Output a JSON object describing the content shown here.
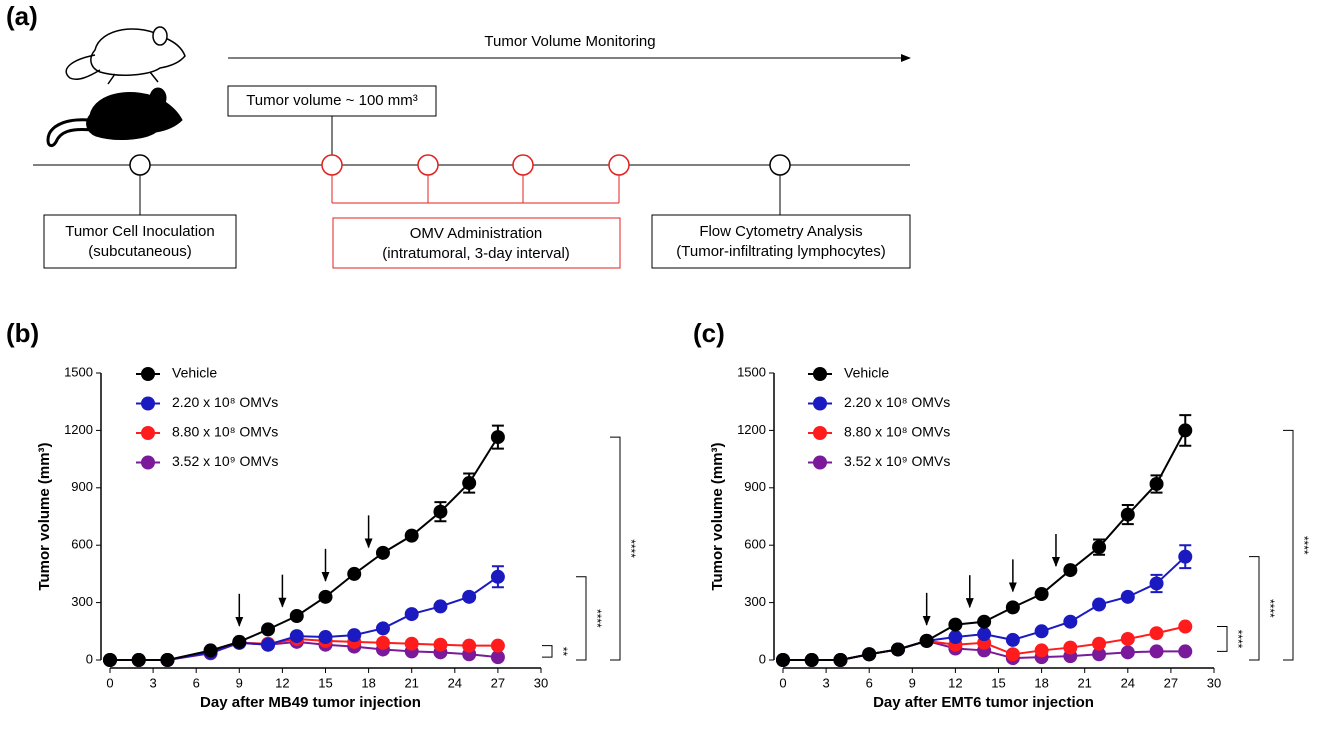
{
  "diagram": {
    "panel_label": "(a)",
    "monitoring": "Tumor Volume Monitoring",
    "threshold_box": "Tumor volume ~ 100 mm³",
    "boxes": [
      {
        "lines": [
          "Tumor Cell Inoculation",
          "(subcutaneous)"
        ]
      },
      {
        "lines": [
          "OMV Administration",
          "(intratumoral, 3-day interval)"
        ]
      },
      {
        "lines": [
          "Flow Cytometry Analysis",
          "(Tumor-infiltrating lymphocytes)"
        ]
      }
    ]
  },
  "chart_data": [
    {
      "type": "line",
      "panel_label": "(b)",
      "xlabel": "Day after MB49 tumor injection",
      "ylabel": "Tumor volume (mm³)",
      "x": [
        0,
        2,
        4,
        7,
        9,
        11,
        13,
        15,
        17,
        19,
        21,
        23,
        25,
        27
      ],
      "xlim": [
        0,
        30
      ],
      "xticks": [
        0,
        3,
        6,
        9,
        12,
        15,
        18,
        21,
        24,
        27,
        30
      ],
      "ylim": [
        0,
        1500
      ],
      "yticks": [
        0,
        300,
        600,
        900,
        1200,
        1500
      ],
      "series": [
        {
          "name": "Vehicle",
          "color": "#000000",
          "values": [
            0,
            0,
            0,
            50,
            95,
            160,
            230,
            330,
            450,
            560,
            650,
            775,
            925,
            1165
          ],
          "errors": [
            null,
            null,
            null,
            null,
            null,
            null,
            null,
            null,
            null,
            null,
            null,
            50,
            50,
            60
          ]
        },
        {
          "name": "2.20 x 10⁸ OMVs",
          "color": "#1a1ac0",
          "values": [
            0,
            0,
            0,
            40,
            90,
            80,
            125,
            120,
            130,
            165,
            240,
            280,
            330,
            435
          ],
          "errors": [
            null,
            null,
            null,
            null,
            null,
            null,
            null,
            null,
            null,
            null,
            null,
            null,
            null,
            55
          ]
        },
        {
          "name": "8.80 x 10⁸ OMVs",
          "color": "#ff1c1c",
          "values": [
            0,
            0,
            0,
            40,
            90,
            85,
            110,
            100,
            95,
            90,
            85,
            80,
            75,
            75
          ]
        },
        {
          "name": "3.52 x 10⁹ OMVs",
          "color": "#7a1a9a",
          "values": [
            0,
            0,
            0,
            35,
            90,
            80,
            95,
            80,
            70,
            55,
            45,
            40,
            30,
            15
          ]
        }
      ],
      "arrows": [
        9,
        12,
        15,
        18
      ],
      "brackets": [
        {
          "from": 15,
          "to": 75,
          "label": "**"
        },
        {
          "from": 0,
          "to": 435,
          "label": "****"
        },
        {
          "from": 0,
          "to": 1165,
          "label": "****"
        }
      ]
    },
    {
      "type": "line",
      "panel_label": "(c)",
      "xlabel": "Day after EMT6 tumor injection",
      "ylabel": "Tumor volume (mm³)",
      "x": [
        0,
        2,
        4,
        6,
        8,
        10,
        12,
        14,
        16,
        18,
        20,
        22,
        24,
        26,
        28
      ],
      "xlim": [
        0,
        30
      ],
      "xticks": [
        0,
        3,
        6,
        9,
        12,
        15,
        18,
        21,
        24,
        27,
        30
      ],
      "ylim": [
        0,
        1500
      ],
      "yticks": [
        0,
        300,
        600,
        900,
        1200,
        1500
      ],
      "series": [
        {
          "name": "Vehicle",
          "color": "#000000",
          "values": [
            0,
            0,
            0,
            30,
            55,
            100,
            185,
            200,
            275,
            345,
            470,
            590,
            760,
            920,
            1200
          ],
          "errors": [
            null,
            null,
            null,
            null,
            null,
            null,
            null,
            null,
            null,
            null,
            null,
            40,
            50,
            45,
            80
          ]
        },
        {
          "name": "2.20 x 10⁸ OMVs",
          "color": "#1a1ac0",
          "values": [
            0,
            0,
            0,
            30,
            55,
            100,
            120,
            135,
            105,
            150,
            200,
            290,
            330,
            400,
            540
          ],
          "errors": [
            null,
            null,
            null,
            null,
            null,
            null,
            null,
            null,
            null,
            null,
            null,
            null,
            null,
            45,
            60
          ]
        },
        {
          "name": "8.80 x 10⁸ OMVs",
          "color": "#ff1c1c",
          "values": [
            0,
            0,
            0,
            30,
            55,
            100,
            80,
            90,
            30,
            50,
            65,
            85,
            110,
            140,
            175
          ]
        },
        {
          "name": "3.52 x 10⁹ OMVs",
          "color": "#7a1a9a",
          "values": [
            0,
            0,
            0,
            30,
            55,
            100,
            60,
            50,
            10,
            15,
            20,
            30,
            40,
            45,
            45
          ]
        }
      ],
      "arrows": [
        10,
        13,
        16,
        19
      ],
      "brackets": [
        {
          "from": 45,
          "to": 175,
          "label": "****"
        },
        {
          "from": 0,
          "to": 540,
          "label": "****"
        },
        {
          "from": 0,
          "to": 1200,
          "label": "****"
        }
      ]
    }
  ]
}
